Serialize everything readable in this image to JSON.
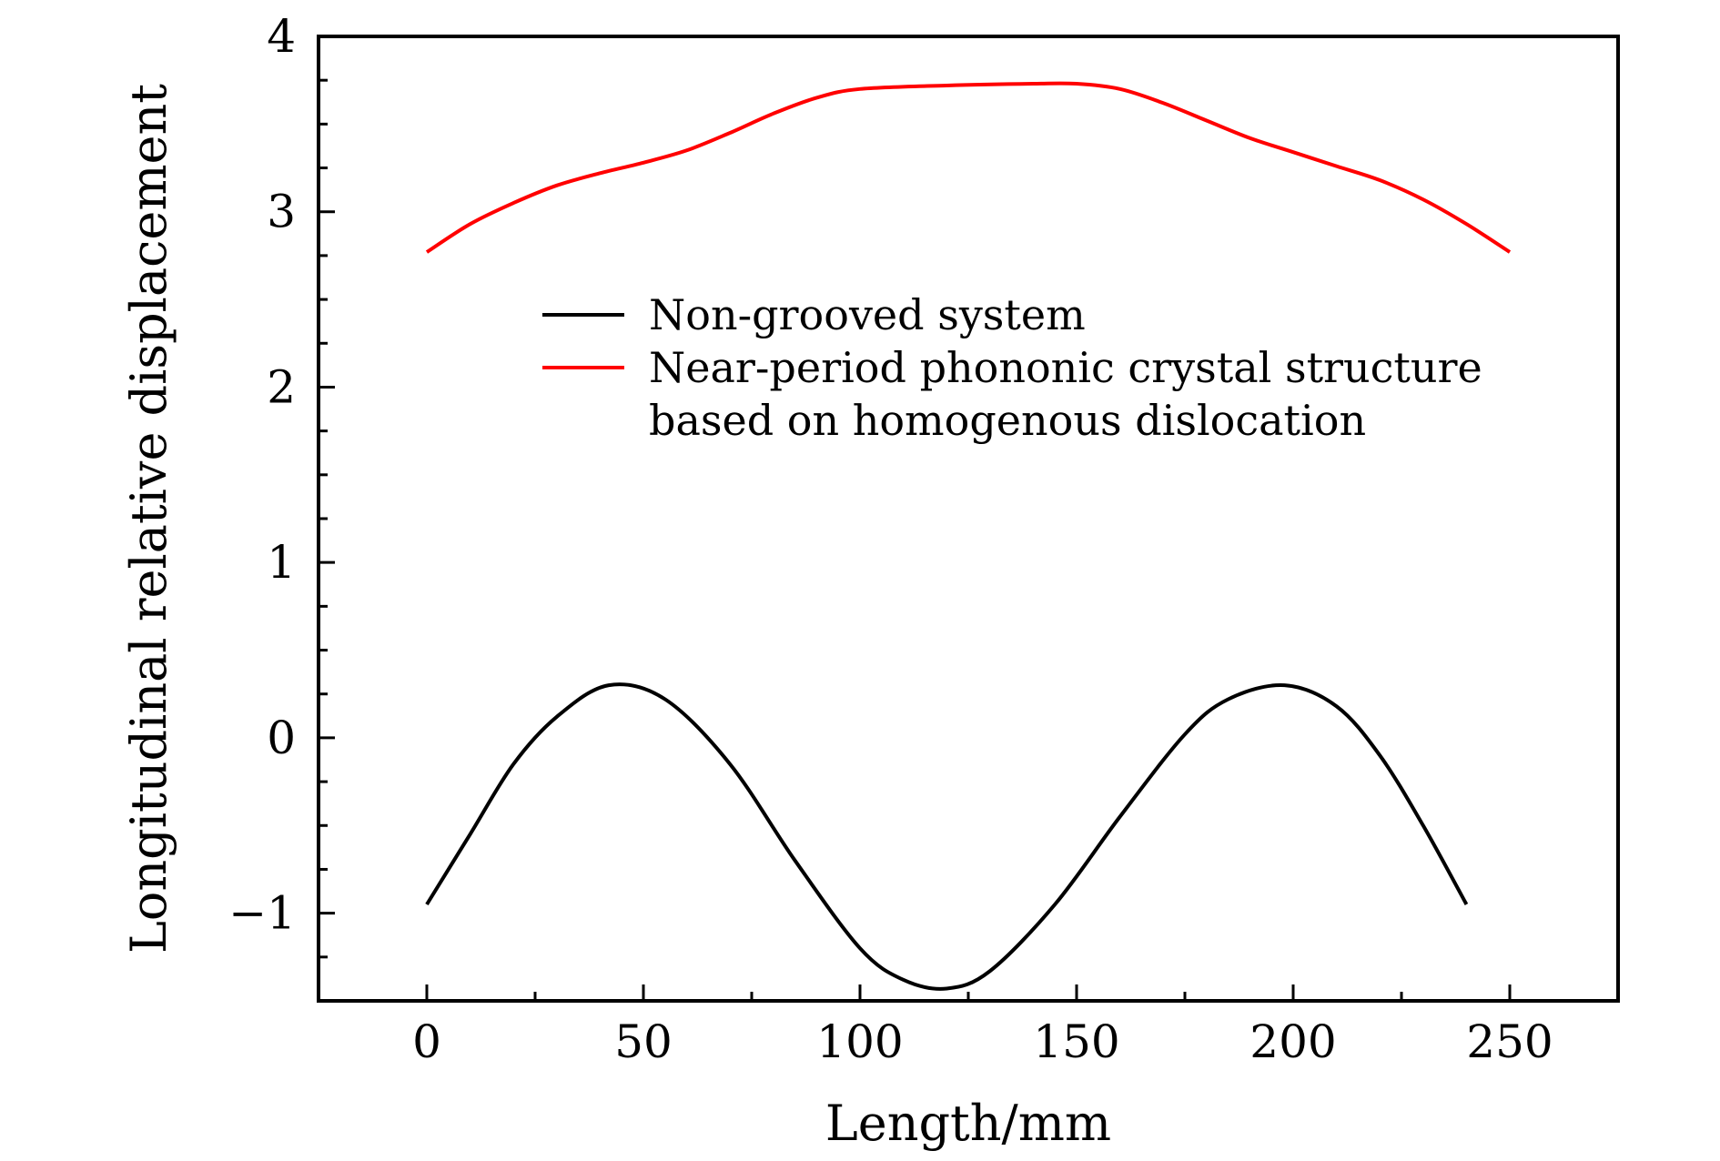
{
  "chart_data": {
    "type": "line",
    "title": "",
    "xlabel": "Length/mm",
    "ylabel": "Longitudinal relative displacement",
    "xlim": [
      -25,
      275
    ],
    "ylim": [
      -1.5,
      4
    ],
    "x_ticks": [
      0,
      50,
      100,
      150,
      200,
      250
    ],
    "x_tick_labels": [
      "0",
      "50",
      "100",
      "150",
      "200",
      "250"
    ],
    "y_ticks": [
      -1,
      0,
      1,
      2,
      3,
      4
    ],
    "y_tick_labels": [
      "−1",
      "0",
      "1",
      "2",
      "3",
      "4"
    ],
    "grid": false,
    "legend_position": "center",
    "series": [
      {
        "name": "Non-grooved system",
        "color": "#000000",
        "x": [
          0,
          10,
          20,
          30,
          42,
          55,
          70,
          85,
          100,
          110,
          120,
          130,
          145,
          160,
          175,
          185,
          198,
          210,
          220,
          230,
          240
        ],
        "y": [
          -0.95,
          -0.55,
          -0.15,
          0.12,
          0.3,
          0.22,
          -0.15,
          -0.7,
          -1.2,
          -1.38,
          -1.43,
          -1.33,
          -0.95,
          -0.45,
          0.02,
          0.22,
          0.3,
          0.18,
          -0.1,
          -0.5,
          -0.95
        ]
      },
      {
        "name": "Near-period phononic crystal structure based on homogenous dislocation",
        "color": "#ff0000",
        "x": [
          0,
          10,
          20,
          30,
          40,
          50,
          60,
          70,
          80,
          90,
          100,
          120,
          140,
          150,
          160,
          170,
          180,
          190,
          200,
          210,
          220,
          230,
          240,
          250
        ],
        "y": [
          2.77,
          2.93,
          3.05,
          3.15,
          3.22,
          3.28,
          3.35,
          3.45,
          3.56,
          3.65,
          3.7,
          3.72,
          3.73,
          3.73,
          3.7,
          3.62,
          3.52,
          3.42,
          3.34,
          3.26,
          3.18,
          3.07,
          2.93,
          2.77
        ]
      }
    ]
  }
}
